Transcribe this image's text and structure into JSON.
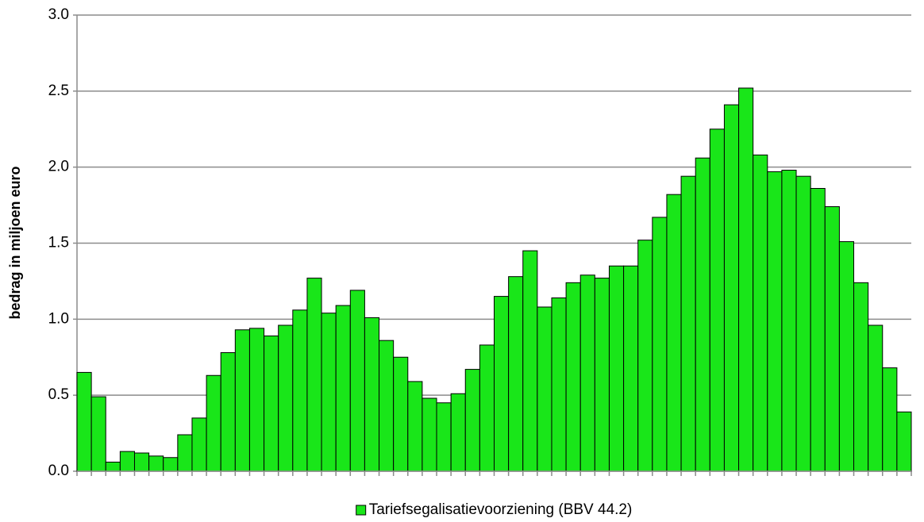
{
  "chart_data": {
    "type": "bar",
    "y_axis_label": "bedrag in miljoen euro",
    "categories": [
      null,
      null,
      null,
      null,
      null,
      null,
      null,
      null,
      null,
      null,
      null,
      null,
      null,
      null,
      null,
      null,
      null,
      null,
      null,
      null,
      null,
      null,
      null,
      null,
      null,
      null,
      null,
      null,
      null,
      null,
      null,
      null,
      null,
      null,
      null,
      null,
      null,
      null,
      null,
      null,
      null,
      null,
      null,
      null,
      null,
      null,
      null,
      null,
      null,
      null,
      null,
      null,
      null,
      null,
      null,
      null,
      null,
      null
    ],
    "series": [
      {
        "name": "Tariefsegalisatievoorziening (BBV 44.2)",
        "color": "#19e619",
        "values": [
          0.65,
          0.49,
          0.06,
          0.13,
          0.12,
          0.1,
          0.09,
          0.24,
          0.35,
          0.63,
          0.78,
          0.93,
          0.94,
          0.89,
          0.96,
          1.06,
          1.27,
          1.04,
          1.09,
          1.19,
          1.01,
          0.86,
          0.75,
          0.59,
          0.48,
          0.45,
          0.51,
          0.67,
          0.83,
          1.15,
          1.28,
          1.45,
          1.08,
          1.14,
          1.24,
          1.29,
          1.27,
          1.35,
          1.35,
          1.52,
          1.67,
          1.82,
          1.94,
          2.06,
          2.25,
          2.41,
          2.52,
          2.08,
          1.97,
          1.98,
          1.94,
          1.86,
          1.74,
          1.51,
          1.24,
          0.96,
          0.68,
          0.39
        ]
      }
    ],
    "ylim": [
      0,
      3
    ],
    "yticks": [
      {
        "value": 0,
        "label": "0.0"
      },
      0.5,
      {
        "value": 1,
        "label": "1.0"
      },
      1.5,
      {
        "value": 2,
        "label": "2.0"
      },
      2.5,
      {
        "value": 3,
        "label": "3.0"
      }
    ],
    "grid": true,
    "legend": "bottom"
  }
}
